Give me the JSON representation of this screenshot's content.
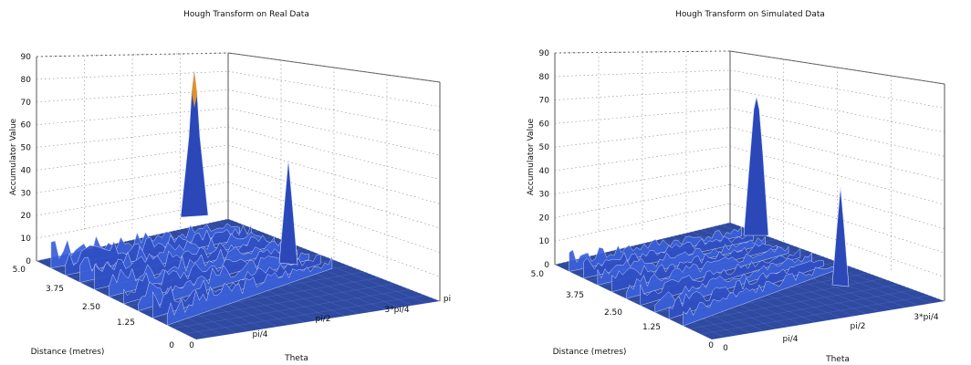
{
  "chart_data": [
    {
      "type": "surface",
      "title": "Hough Transform on Real Data",
      "xlabel": "Theta",
      "ylabel": "Distance (metres)",
      "zlabel": "Accumulator Value",
      "x_ticks": [
        "0",
        "pi/4",
        "pi/2",
        "3*pi/4",
        "pi"
      ],
      "y_ticks": [
        "0",
        "1.25",
        "2.50",
        "3.75",
        "5.0"
      ],
      "z_ticks": [
        "0",
        "10",
        "20",
        "30",
        "40",
        "50",
        "60",
        "70",
        "80",
        "90"
      ],
      "xlim": [
        0,
        3.1416
      ],
      "ylim": [
        0,
        5.0
      ],
      "zlim": [
        0,
        90
      ],
      "grid": true,
      "peaks": [
        {
          "theta": 0.3,
          "distance": 3.5,
          "value": 88
        },
        {
          "theta": 2.0,
          "distance": 0.6,
          "value": 48
        }
      ]
    },
    {
      "type": "surface",
      "title": "Hough Transform on Simulated Data",
      "xlabel": "Theta",
      "ylabel": "Distance (metres)",
      "zlabel": "Accumulator Value",
      "x_ticks": [
        "0",
        "pi/4",
        "pi/2",
        "3*pi/4"
      ],
      "y_ticks": [
        "0",
        "1.25",
        "2.50",
        "3.75",
        "5.0"
      ],
      "z_ticks": [
        "0",
        "10",
        "20",
        "30",
        "40",
        "50",
        "60",
        "70",
        "80",
        "90"
      ],
      "xlim": [
        0,
        3.1416
      ],
      "ylim": [
        0,
        5.0
      ],
      "zlim": [
        0,
        90
      ],
      "grid": true,
      "peaks": [
        {
          "theta": 0.4,
          "distance": 3.0,
          "value": 75
        },
        {
          "theta": 2.2,
          "distance": 0.3,
          "value": 40
        }
      ]
    }
  ],
  "colors": {
    "surface_base": "#1f3a8a",
    "surface_mid": "#3b5fd6",
    "surface_high": "#9fb7ff",
    "peak_top": "#f39c12",
    "grid": "#777777"
  }
}
